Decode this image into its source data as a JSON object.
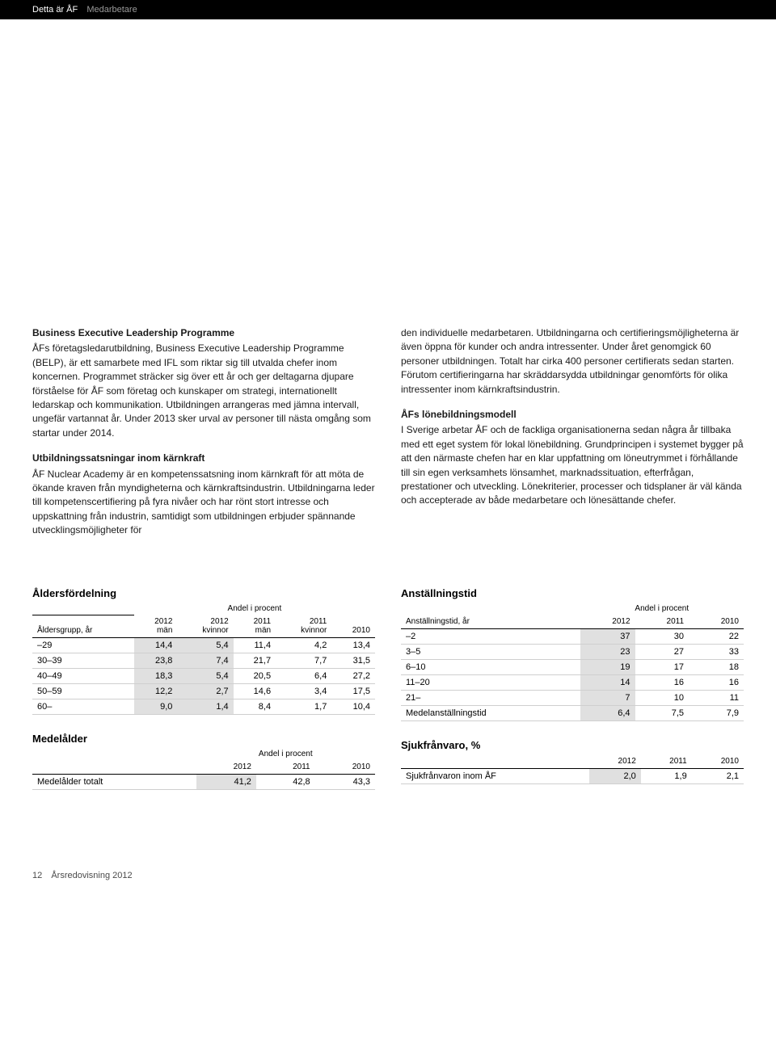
{
  "header": {
    "crumb1": "Detta är ÅF",
    "crumb2": "Medarbetare"
  },
  "left": {
    "h1": "Business Executive Leadership Programme",
    "p1": "ÅFs företagsledarutbildning, Business Executive Leadership Programme (BELP), är ett samarbete med IFL som riktar sig till utvalda chefer inom koncernen. Programmet sträcker sig över ett år och ger deltagarna djupare förståelse för ÅF som företag och kunskaper om strategi, internationellt ledarskap och kommunikation. Utbildningen arrangeras med jämna intervall, ungefär vartannat år. Under 2013 sker urval av personer till nästa omgång som startar under 2014.",
    "h2": "Utbildningssatsningar inom kärnkraft",
    "p2": "ÅF Nuclear Academy är en kompetenssatsning inom kärnkraft för att möta de ökande kraven från myndigheterna och kärnkraftsindustrin. Utbildningarna leder till kompetenscertifiering på fyra nivåer och har rönt stort intresse och uppskattning från industrin, samtidigt som utbildningen erbjuder spännande utvecklingsmöjligheter för"
  },
  "right": {
    "p1": "den individuelle medarbetaren. Utbildningarna och certifieringsmöjligheterna är även öppna för kunder och andra intressenter. Under året genomgick 60 personer utbildningen. Totalt har cirka 400 personer certifierats sedan starten. Förutom certifieringarna har skräddarsydda utbildningar genomförts för olika intressenter inom kärnkraftsindustrin.",
    "h2": "ÅFs lönebildningsmodell",
    "p2": "I Sverige arbetar ÅF och de fackliga organisationerna sedan några år tillbaka med ett eget system för lokal lönebildning. Grundprincipen i systemet bygger på att den närmaste chefen har en klar uppfattning om löneutrymmet i förhållande till sin egen verksamhets lönsamhet, marknadssituation, efterfrågan, prestationer och utveckling. Lönekriterier, processer och tidsplaner är väl kända och accepterade av både medarbetare och lönesättande chefer."
  },
  "table_age": {
    "title": "Åldersfördelning",
    "subhead": "Andel i procent",
    "row_label": "Åldersgrupp, år",
    "cols": [
      "2012\nmän",
      "2012\nkvinnor",
      "2011\nmän",
      "2011\nkvinnor",
      "2010"
    ],
    "rows": [
      {
        "label": "–29",
        "v": [
          "14,4",
          "5,4",
          "11,4",
          "4,2",
          "13,4"
        ]
      },
      {
        "label": "30–39",
        "v": [
          "23,8",
          "7,4",
          "21,7",
          "7,7",
          "31,5"
        ]
      },
      {
        "label": "40–49",
        "v": [
          "18,3",
          "5,4",
          "20,5",
          "6,4",
          "27,2"
        ]
      },
      {
        "label": "50–59",
        "v": [
          "12,2",
          "2,7",
          "14,6",
          "3,4",
          "17,5"
        ]
      },
      {
        "label": "60–",
        "v": [
          "9,0",
          "1,4",
          "8,4",
          "1,7",
          "10,4"
        ]
      }
    ]
  },
  "table_medel": {
    "title": "Medelålder",
    "subhead": "Andel i procent",
    "cols": [
      "2012",
      "2011",
      "2010"
    ],
    "row_label": "Medelålder totalt",
    "row": [
      "41,2",
      "42,8",
      "43,3"
    ]
  },
  "table_emp": {
    "title": "Anställningstid",
    "subhead": "Andel i procent",
    "row_label": "Anställningstid, år",
    "cols": [
      "2012",
      "2011",
      "2010"
    ],
    "rows": [
      {
        "label": "–2",
        "v": [
          "37",
          "30",
          "22"
        ]
      },
      {
        "label": "3–5",
        "v": [
          "23",
          "27",
          "33"
        ]
      },
      {
        "label": "6–10",
        "v": [
          "19",
          "17",
          "18"
        ]
      },
      {
        "label": "11–20",
        "v": [
          "14",
          "16",
          "16"
        ]
      },
      {
        "label": "21–",
        "v": [
          "7",
          "10",
          "11"
        ]
      },
      {
        "label": "Medelanställningstid",
        "v": [
          "6,4",
          "7,5",
          "7,9"
        ]
      }
    ]
  },
  "table_sick": {
    "title": "Sjukfrånvaro, %",
    "cols": [
      "2012",
      "2011",
      "2010"
    ],
    "row_label": "Sjukfrånvaron inom ÅF",
    "row": [
      "2,0",
      "1,9",
      "2,1"
    ]
  },
  "footer": {
    "page_no": "12",
    "doc": "Årsredovisning 2012"
  }
}
